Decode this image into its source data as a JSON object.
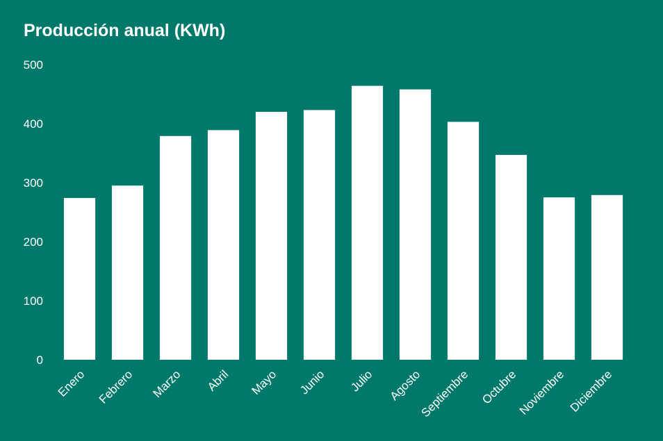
{
  "colors": {
    "background": "#00796b",
    "bar": "#ffffff",
    "text": "#ffffff"
  },
  "chart_data": {
    "type": "bar",
    "title": "Producción anual (KWh)",
    "xlabel": "",
    "ylabel": "",
    "categories": [
      "Enero",
      "Febrero",
      "Marzo",
      "Abril",
      "Mayo",
      "Junio",
      "Julio",
      "Agosto",
      "Septiembre",
      "Octubre",
      "Noviembre",
      "Diciembre"
    ],
    "values": [
      274,
      295,
      379,
      389,
      420,
      423,
      464,
      458,
      403,
      347,
      275,
      279
    ],
    "ylim": [
      0,
      500
    ],
    "yticks": [
      0,
      100,
      200,
      300,
      400,
      500
    ],
    "grid": false,
    "legend": "none"
  }
}
